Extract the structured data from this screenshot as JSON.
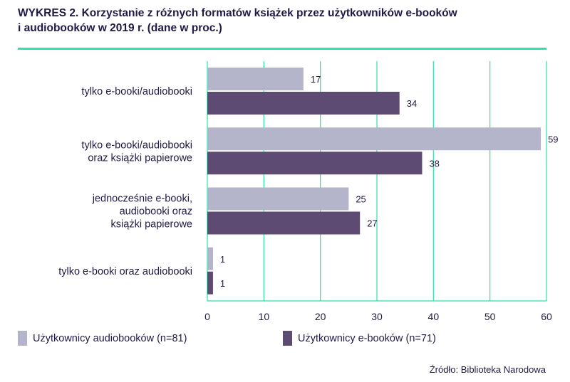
{
  "title": {
    "line1": "WYKRES 2. Korzystanie z różnych formatów książek przez użytkowników e-booków",
    "line2": "i audiobooków w 2019 r. (dane w proc.)"
  },
  "source": "Źródło: Biblioteka Narodowa",
  "colors": {
    "audiobook": "#b4b4ca",
    "ebook": "#5d4b73",
    "grid": "#2fe0a8",
    "rule": "#2fe0a8"
  },
  "chart_data": {
    "type": "bar",
    "orientation": "horizontal",
    "categories": [
      [
        "tylko e-booki/audiobooki"
      ],
      [
        "tylko e-booki/audiobooki",
        "oraz książki papierowe"
      ],
      [
        "jednocześnie e-booki,",
        "audiobooki oraz",
        "książki papierowe"
      ],
      [
        "tylko e-booki oraz audiobooki"
      ]
    ],
    "series": [
      {
        "name": "Użytkownicy audiobooków (n=81)",
        "color": "#b4b4ca",
        "values": [
          17,
          59,
          25,
          1
        ]
      },
      {
        "name": "Użytkownicy e-booków (n=71)",
        "color": "#5d4b73",
        "values": [
          34,
          38,
          27,
          1
        ]
      }
    ],
    "xlim": [
      0,
      60
    ],
    "xticks": [
      "0",
      "10",
      "20",
      "30",
      "40",
      "50",
      "60"
    ],
    "grid": true,
    "legend_position": "bottom"
  }
}
